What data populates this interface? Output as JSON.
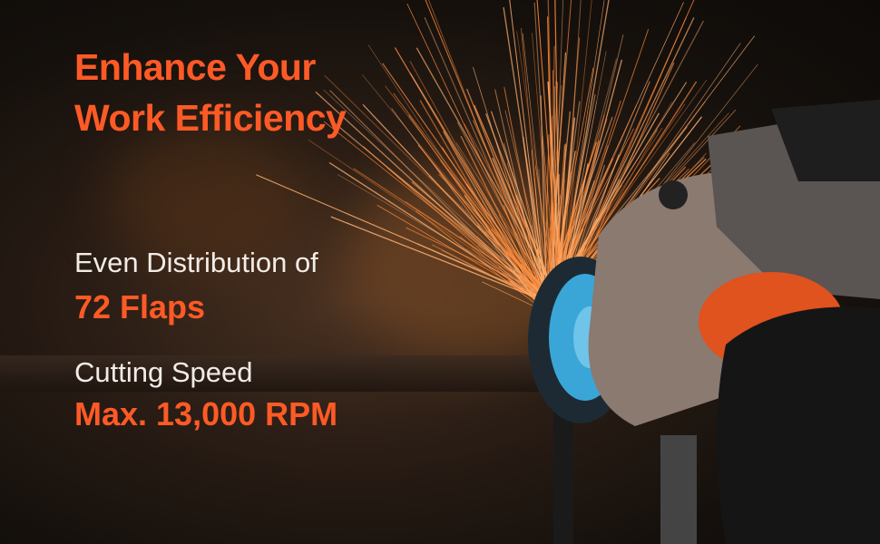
{
  "headline": {
    "line1": "Enhance Your",
    "line2": "Work Efficiency"
  },
  "feature1": {
    "label": "Even Distribution of",
    "value": "72 Flaps"
  },
  "feature2": {
    "label": "Cutting Speed",
    "value": "Max. 13,000 RPM"
  },
  "colors": {
    "accent": "#ff5a26",
    "text": "#f2ece6",
    "background": "#15100c",
    "disc": "#3aa6d8"
  },
  "image": {
    "subject": "angle-grinder-with-flap-disc-sparks"
  }
}
